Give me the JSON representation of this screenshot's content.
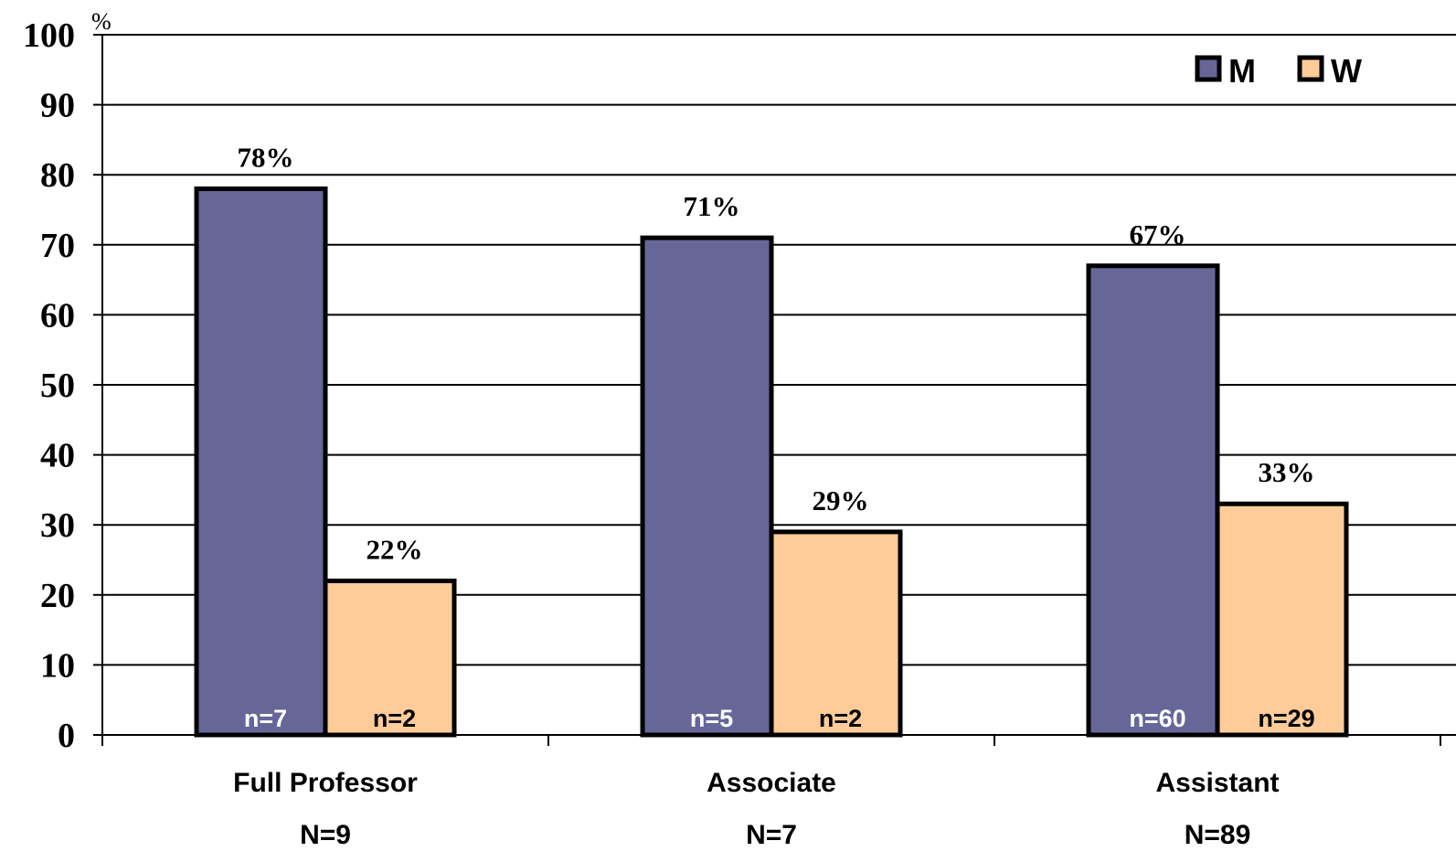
{
  "chart_data": {
    "type": "bar",
    "title": "",
    "xlabel": "",
    "ylabel": "%",
    "ylim": [
      0,
      100
    ],
    "yticks": [
      0,
      10,
      20,
      30,
      40,
      50,
      60,
      70,
      80,
      90,
      100
    ],
    "grid": true,
    "legend_position": "top-right",
    "categories": [
      "Full Professor",
      "Associate",
      "Assistant"
    ],
    "category_totals": [
      "N=9",
      "N=7",
      "N=89"
    ],
    "series": [
      {
        "name": "M",
        "color": "#666699",
        "values": [
          78,
          71,
          67
        ],
        "value_labels": [
          "78%",
          "71%",
          "67%"
        ],
        "count_labels": [
          "n=7",
          "n=5",
          "n=60"
        ],
        "count_label_color": "#ffffff"
      },
      {
        "name": "W",
        "color": "#ffcc99",
        "values": [
          22,
          29,
          33
        ],
        "value_labels": [
          "22%",
          "29%",
          "33%"
        ],
        "count_labels": [
          "n=2",
          "n=2",
          "n=29"
        ],
        "count_label_color": "#000000"
      }
    ]
  }
}
